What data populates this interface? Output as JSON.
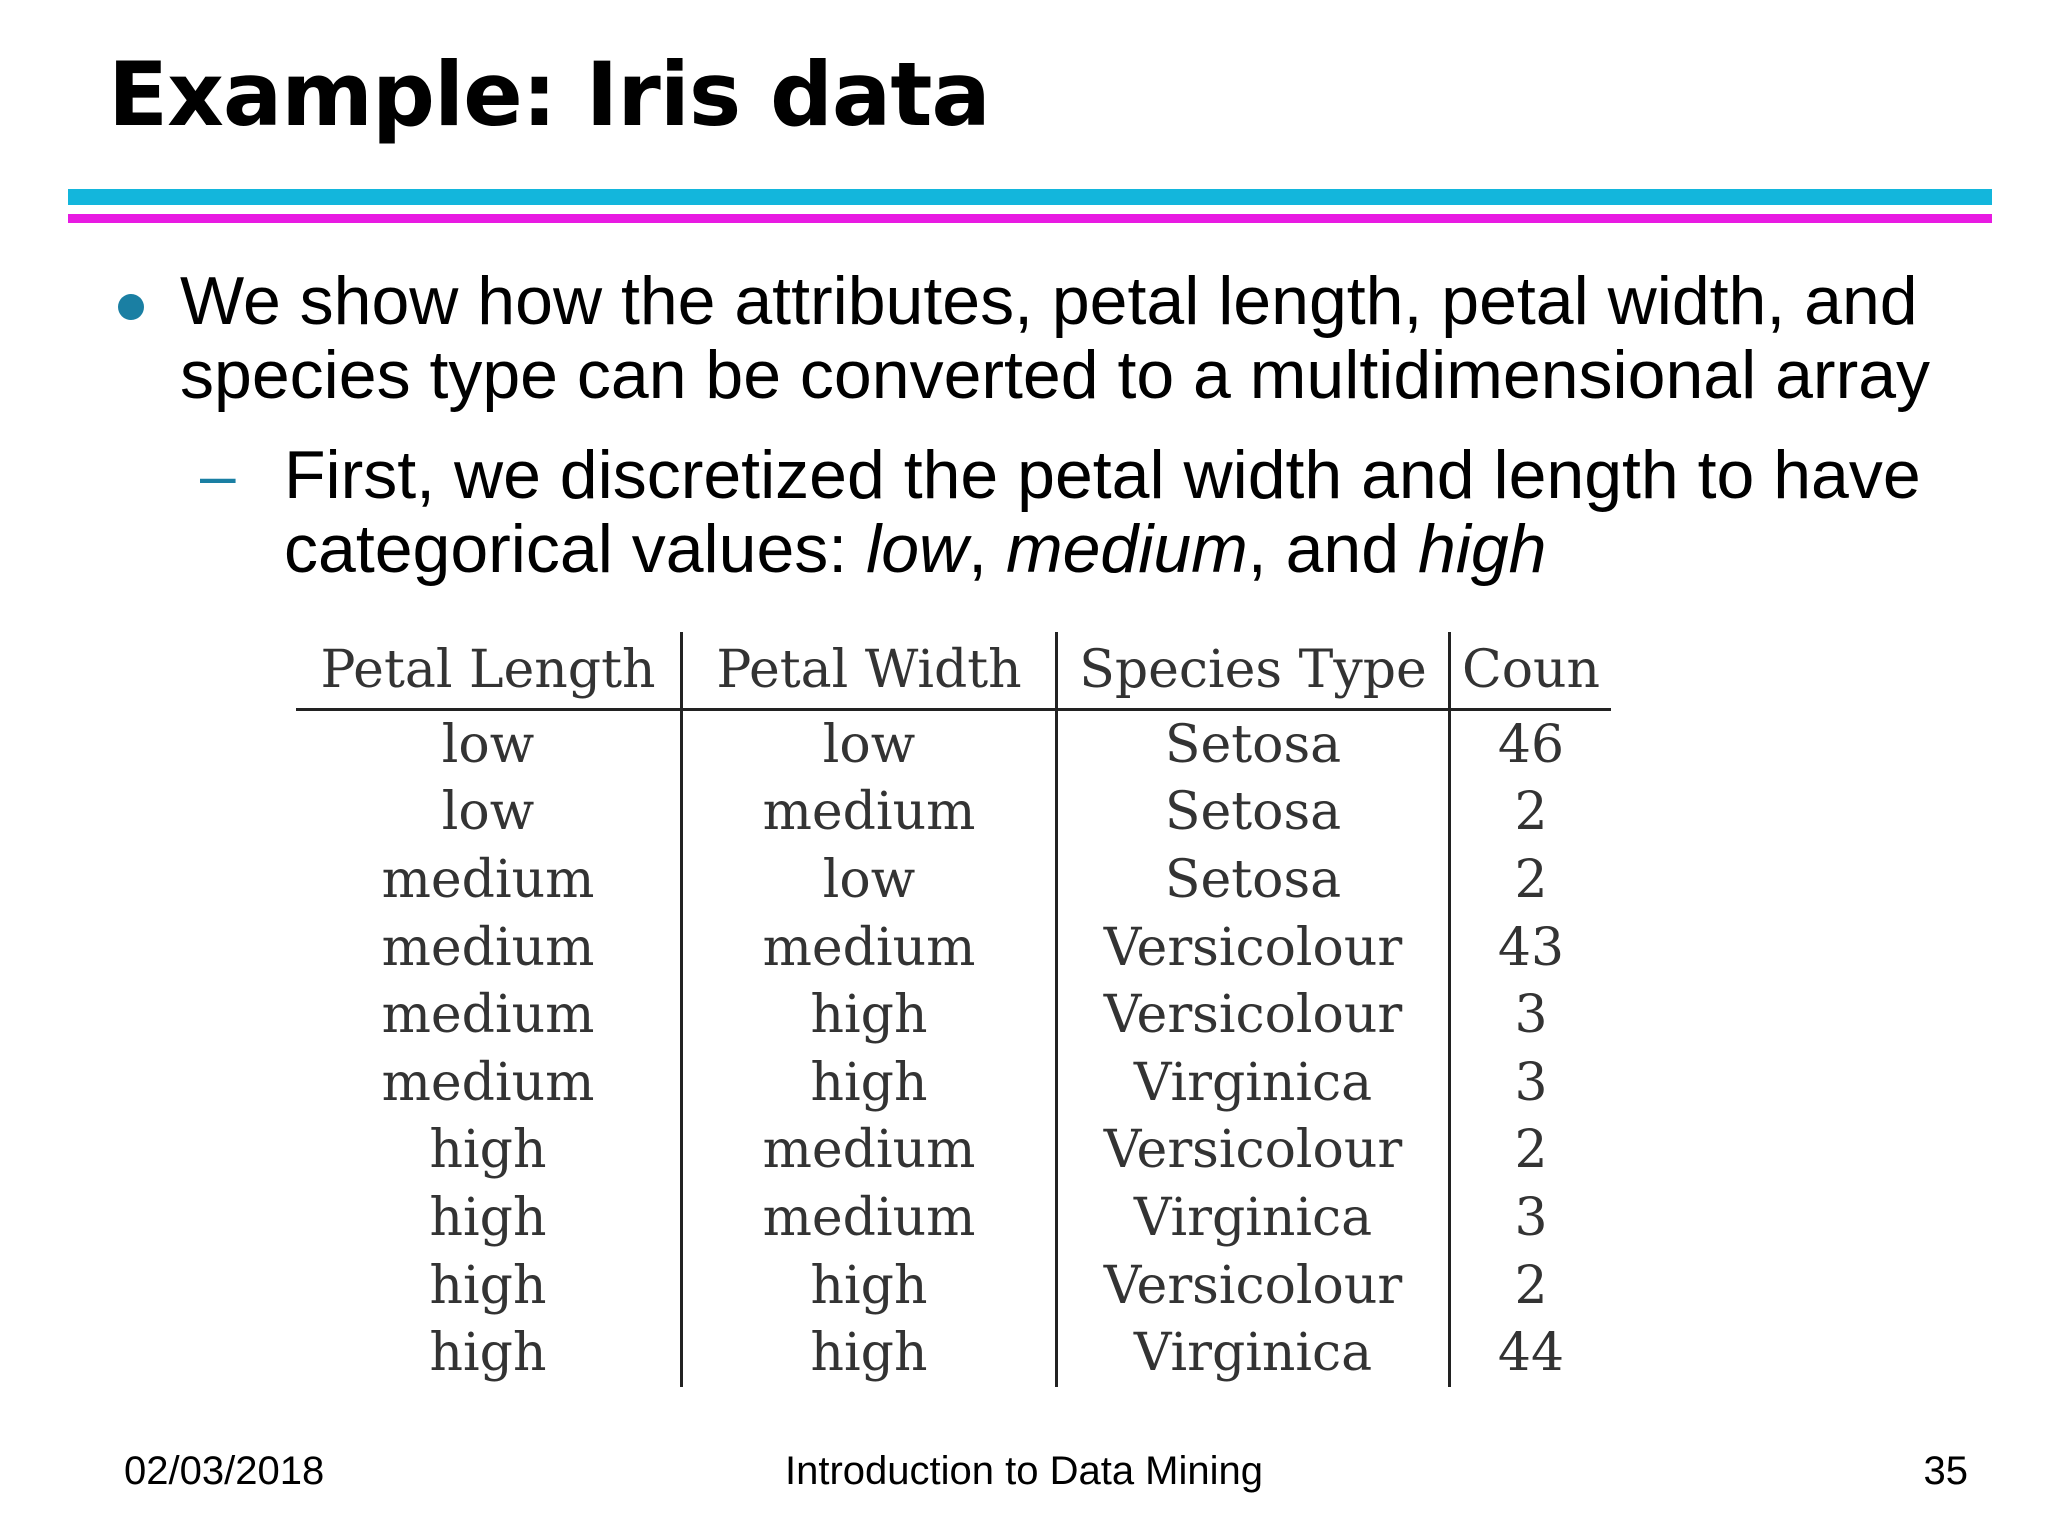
{
  "slide": {
    "title": "Example: Iris data",
    "bullet": "We show how the attributes, petal length, petal width, and species type can be converted to a multidimensional array",
    "sub_bullet": {
      "dash": "–",
      "prefix": "First, we discretized the petal width and length to have categorical values: ",
      "term_low": "low",
      "sep1": ", ",
      "term_medium": "medium",
      "sep2": ", and ",
      "term_high": "high"
    }
  },
  "table": {
    "headers": [
      "Petal Length",
      "Petal Width",
      "Species Type",
      "Coun"
    ],
    "rows": [
      [
        "low",
        "low",
        "Setosa",
        "46"
      ],
      [
        "low",
        "medium",
        "Setosa",
        "2"
      ],
      [
        "medium",
        "low",
        "Setosa",
        "2"
      ],
      [
        "medium",
        "medium",
        "Versicolour",
        "43"
      ],
      [
        "medium",
        "high",
        "Versicolour",
        "3"
      ],
      [
        "medium",
        "high",
        "Virginica",
        "3"
      ],
      [
        "high",
        "medium",
        "Versicolour",
        "2"
      ],
      [
        "high",
        "medium",
        "Virginica",
        "3"
      ],
      [
        "high",
        "high",
        "Versicolour",
        "2"
      ],
      [
        "high",
        "high",
        "Virginica",
        "44"
      ]
    ]
  },
  "footer": {
    "date": "02/03/2018",
    "course": "Introduction to Data Mining",
    "page": "35"
  },
  "colors": {
    "rule_top": "#13b6dc",
    "rule_bottom": "#e81ae2",
    "bullet": "#1a7fa3"
  }
}
